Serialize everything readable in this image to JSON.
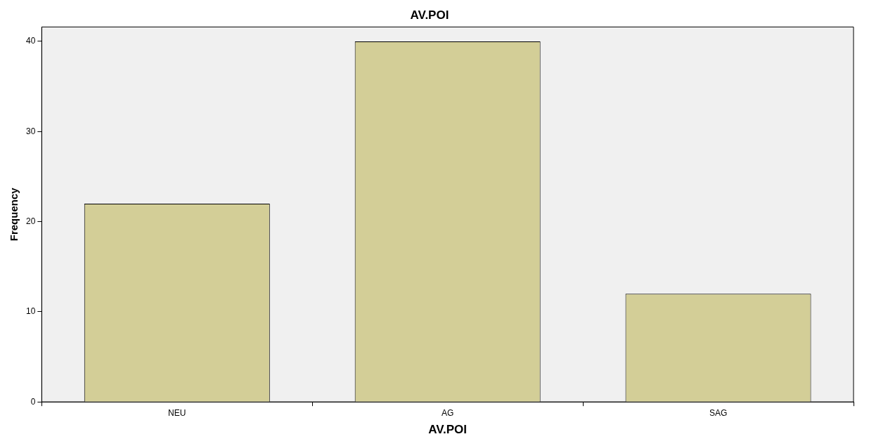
{
  "chart_data": {
    "type": "bar",
    "title": "AV.POI",
    "xlabel": "AV.POI",
    "ylabel": "Frequency",
    "categories": [
      "NEU",
      "AG",
      "SAG"
    ],
    "values": [
      22,
      40,
      12
    ],
    "color": "#d3ce97",
    "ylim": [
      0,
      41.6
    ],
    "yticks": [
      0,
      10,
      20,
      30,
      40
    ],
    "grid": false,
    "legend": false
  }
}
